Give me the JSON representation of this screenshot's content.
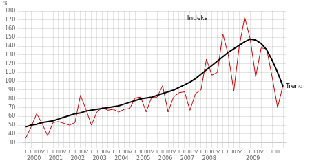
{
  "chart_data": {
    "type": "line",
    "ylabel": "%",
    "categories": [
      "I",
      "II",
      "III",
      "IV",
      "I",
      "II",
      "III",
      "IV",
      "I",
      "II",
      "III",
      "IV",
      "I",
      "II",
      "III",
      "IV",
      "I",
      "II",
      "III",
      "IV",
      "I",
      "II",
      "III",
      "IV",
      "I",
      "II",
      "III",
      "IV",
      "I",
      "II",
      "III",
      "IV",
      "I",
      "II",
      "III",
      "IV",
      "I",
      "II",
      "III",
      "IV",
      "I",
      "II",
      "III",
      "IV",
      "I",
      "II",
      "III",
      null
    ],
    "x_group_labels": [
      {
        "value": 1.5,
        "label": "2000"
      },
      {
        "value": 5.5,
        "label": "2001"
      },
      {
        "value": 9.5,
        "label": "2002"
      },
      {
        "value": 13.5,
        "label": "2003"
      },
      {
        "value": 17.5,
        "label": "2004"
      },
      {
        "value": 21.5,
        "label": "2005"
      },
      {
        "value": 25.5,
        "label": "2006"
      },
      {
        "value": 29.5,
        "label": "2007"
      },
      {
        "value": 33.5,
        "label": "2008"
      },
      {
        "value": 41.5,
        "label": "2009"
      }
    ],
    "series": [
      {
        "color": "#cc0000",
        "values": [
          35,
          48,
          63,
          52,
          38,
          53,
          54,
          52,
          50,
          53,
          84,
          68,
          50,
          65,
          70,
          67,
          68,
          65,
          68,
          69,
          81,
          82,
          65,
          82,
          82,
          95,
          65,
          82,
          87,
          88,
          67,
          86,
          90,
          125,
          107,
          110,
          154,
          130,
          89,
          140,
          173,
          148,
          105,
          138,
          137,
          105,
          70,
          96
        ]
      },
      {
        "color": "#000000",
        "values": [
          48,
          50,
          51,
          53,
          54,
          55,
          57,
          59,
          61,
          63,
          64,
          66,
          67,
          68,
          69,
          70,
          71,
          72,
          74,
          76,
          78,
          80,
          81,
          82,
          84,
          86,
          88,
          90,
          93,
          96,
          99,
          103,
          108,
          113,
          118,
          123,
          128,
          133,
          137,
          141,
          145,
          148,
          147,
          143,
          136,
          124,
          110,
          94
        ]
      }
    ],
    "ylim": [
      30,
      180
    ],
    "yticks": [
      30,
      40,
      50,
      60,
      70,
      80,
      90,
      100,
      110,
      120,
      130,
      140,
      150,
      160,
      170,
      180
    ],
    "grid": true,
    "annotations": [
      {
        "text": "Indeks",
        "x": 29,
        "y": 172
      },
      {
        "text": "Trend",
        "x": 47,
        "y": 94
      }
    ]
  }
}
